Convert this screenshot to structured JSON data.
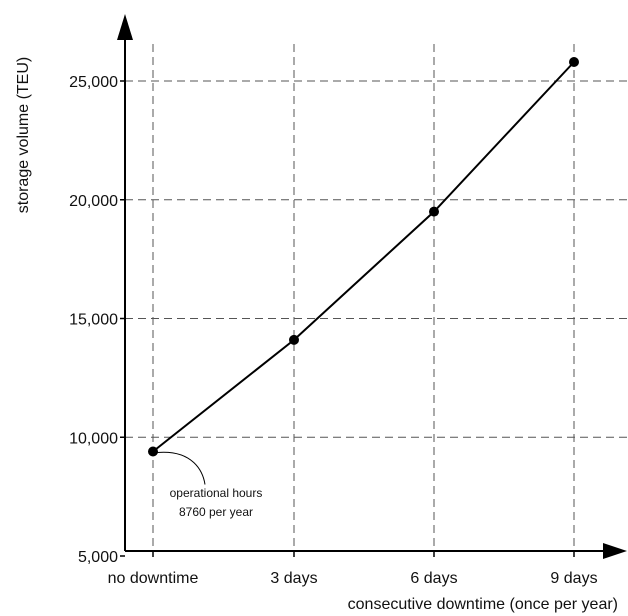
{
  "chart_data": {
    "type": "line",
    "title": "",
    "xlabel": "consecutive downtime (once per year)",
    "ylabel": "storage volume (TEU)",
    "categories": [
      "no downtime",
      "3 days",
      "6 days",
      "9 days"
    ],
    "series": [
      {
        "values": [
          9400,
          14100,
          19500,
          25800
        ]
      }
    ],
    "ylim": [
      5000,
      27500
    ],
    "yticks": [
      5000,
      10000,
      15000,
      20000,
      25000
    ],
    "ytick_labels": [
      "5,000",
      "10,000",
      "15,000",
      "20,000",
      "25,000"
    ],
    "grid": "dashed",
    "annotation": {
      "line1": "operational hours",
      "line2": "8760 per year",
      "points_to": "no downtime"
    },
    "colors": {
      "line": "#000000",
      "grid": "#555555"
    }
  }
}
